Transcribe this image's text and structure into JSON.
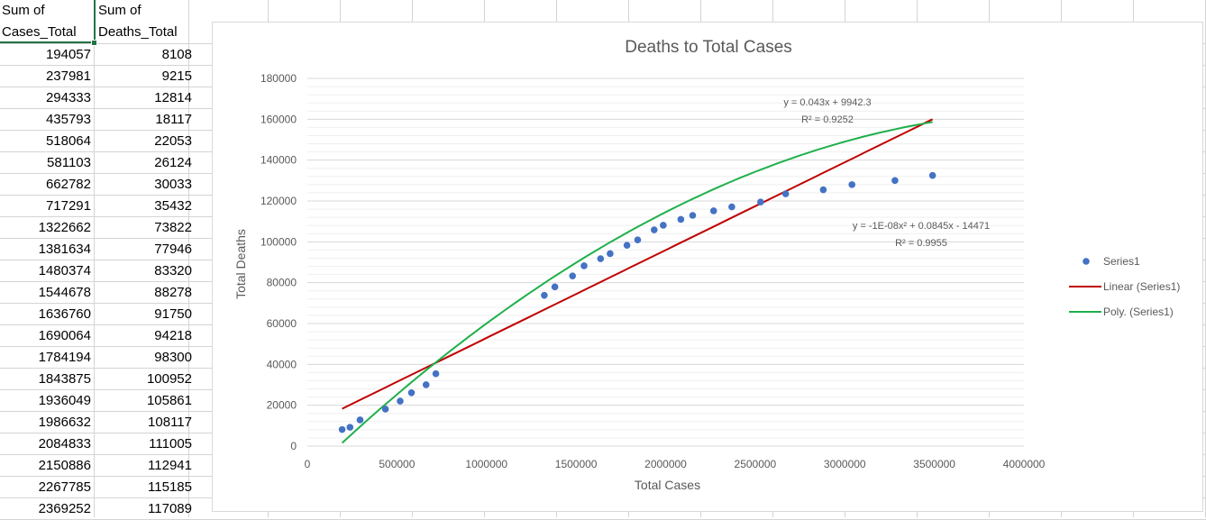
{
  "spreadsheet": {
    "header_a_line1": "Sum of",
    "header_a_line2": "Cases_Total",
    "header_b_line1": "Sum of",
    "header_b_line2": "Deaths_Total",
    "rows": [
      [
        "194057",
        "8108"
      ],
      [
        "237981",
        "9215"
      ],
      [
        "294333",
        "12814"
      ],
      [
        "435793",
        "18117"
      ],
      [
        "518064",
        "22053"
      ],
      [
        "581103",
        "26124"
      ],
      [
        "662782",
        "30033"
      ],
      [
        "717291",
        "35432"
      ],
      [
        "1322662",
        "73822"
      ],
      [
        "1381634",
        "77946"
      ],
      [
        "1480374",
        "83320"
      ],
      [
        "1544678",
        "88278"
      ],
      [
        "1636760",
        "91750"
      ],
      [
        "1690064",
        "94218"
      ],
      [
        "1784194",
        "98300"
      ],
      [
        "1843875",
        "100952"
      ],
      [
        "1936049",
        "105861"
      ],
      [
        "1986632",
        "108117"
      ],
      [
        "2084833",
        "111005"
      ],
      [
        "2150886",
        "112941"
      ],
      [
        "2267785",
        "115185"
      ],
      [
        "2369252",
        "117089"
      ]
    ]
  },
  "chart_data": {
    "type": "scatter",
    "title": "Deaths to Total Cases",
    "xlabel": "Total Cases",
    "ylabel": "Total Deaths",
    "xlim": [
      0,
      4000000
    ],
    "ylim": [
      0,
      180000
    ],
    "x_ticks": [
      "0",
      "500000",
      "1000000",
      "1500000",
      "2000000",
      "2500000",
      "3000000",
      "3500000",
      "4000000"
    ],
    "y_ticks": [
      "0",
      "20000",
      "40000",
      "60000",
      "80000",
      "100000",
      "120000",
      "140000",
      "160000",
      "180000"
    ],
    "grid": true,
    "legend_position": "right",
    "series": [
      {
        "name": "Series1",
        "color": "#4472c4",
        "x": [
          194057,
          237981,
          294333,
          435793,
          518064,
          581103,
          662782,
          717291,
          1322662,
          1381634,
          1480374,
          1544678,
          1636760,
          1690064,
          1784194,
          1843875,
          1936049,
          1986632,
          2084833,
          2150886,
          2267785,
          2369252,
          2530000,
          2670000,
          2880000,
          3040000,
          3280000,
          3490000
        ],
        "y": [
          8108,
          9215,
          12814,
          18117,
          22053,
          26124,
          30033,
          35432,
          73822,
          77946,
          83320,
          88278,
          91750,
          94218,
          98300,
          100952,
          105861,
          108117,
          111005,
          112941,
          115185,
          117089,
          119500,
          123500,
          125500,
          128000,
          130000,
          132500
        ]
      }
    ],
    "trendlines": [
      {
        "name": "Linear (Series1)",
        "kind": "linear",
        "color": "#c00000",
        "equation": "y = 0.043x + 9942.3",
        "r2": "R² = 0.9252",
        "coefficients": [
          9942.3,
          0.043
        ]
      },
      {
        "name": "Poly. (Series1)",
        "kind": "polynomial",
        "color": "#1fb04b",
        "equation": "y = -1E-08x² + 0.0845x - 14471",
        "r2": "R² = 0.9955",
        "coefficients": [
          -14471,
          0.0845,
          -1e-08
        ]
      }
    ]
  }
}
